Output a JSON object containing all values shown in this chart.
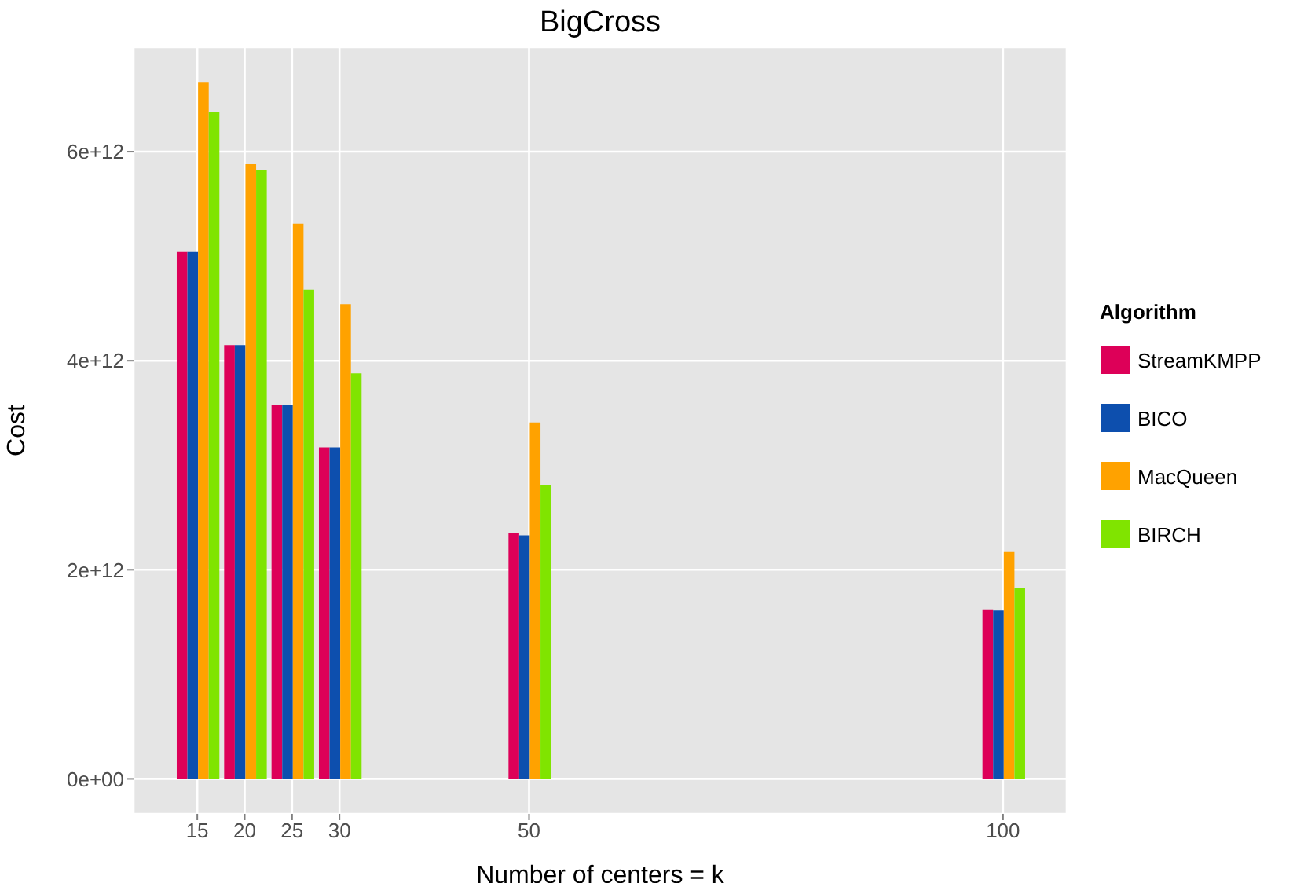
{
  "chart_data": {
    "type": "bar",
    "title": "BigCross",
    "xlabel": "Number of centers = k",
    "ylabel": "Cost",
    "legend_title": "Algorithm",
    "legend": "right",
    "grid": true,
    "x": [
      15,
      20,
      25,
      30,
      50,
      100
    ],
    "series": [
      {
        "name": "StreamKMPP",
        "color": "#dd0058",
        "values": [
          5040000000000.0,
          4150000000000.0,
          3580000000000.0,
          3170000000000.0,
          2350000000000.0,
          1620000000000.0
        ]
      },
      {
        "name": "BICO",
        "color": "#0d4fae",
        "values": [
          5040000000000.0,
          4150000000000.0,
          3580000000000.0,
          3170000000000.0,
          2330000000000.0,
          1610000000000.0
        ]
      },
      {
        "name": "MacQueen",
        "color": "#ffa200",
        "values": [
          6660000000000.0,
          5880000000000.0,
          5310000000000.0,
          4540000000000.0,
          3410000000000.0,
          2170000000000.0
        ]
      },
      {
        "name": "BIRCH",
        "color": "#80e400",
        "values": [
          6380000000000.0,
          5820000000000.0,
          4680000000000.0,
          3880000000000.0,
          2810000000000.0,
          1830000000000.0
        ]
      }
    ],
    "xlim": [
      8.275,
      106.725
    ],
    "xticks": [
      15,
      20,
      25,
      30,
      50,
      100
    ],
    "ylim": [
      -335000000000.0,
      7000000000000.0
    ],
    "yticks": [
      {
        "value": 0,
        "label": "0e+00"
      },
      {
        "value": 2000000000000.0,
        "label": "2e+12"
      },
      {
        "value": 4000000000000.0,
        "label": "4e+12"
      },
      {
        "value": 6000000000000.0,
        "label": "6e+12"
      }
    ]
  }
}
